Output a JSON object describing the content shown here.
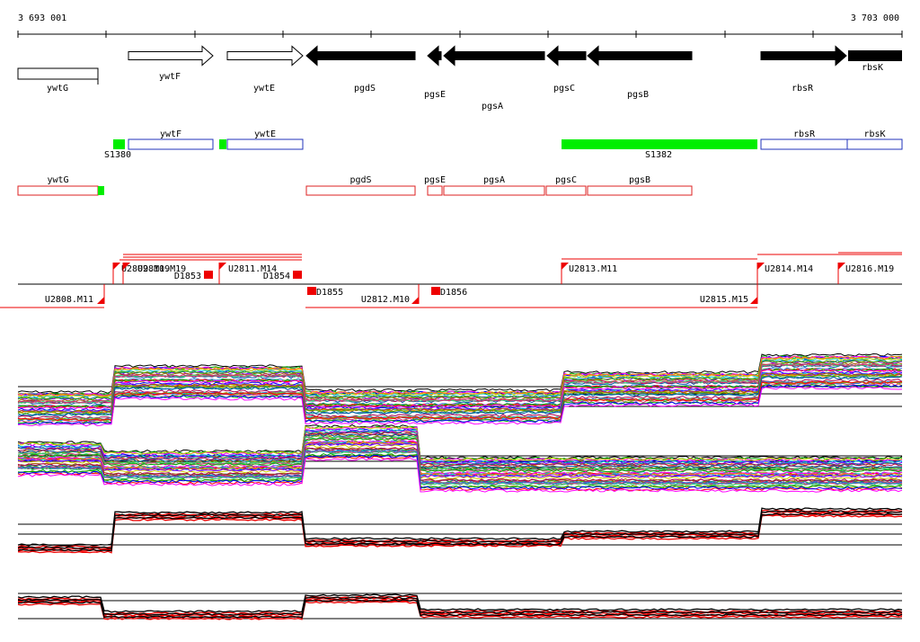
{
  "ruler": {
    "start_label": "3 693 001",
    "end_label": "3 703 000"
  },
  "colors": {
    "gene_fill": "#000000",
    "segment_green": "#00ee00",
    "forward_feature": "#2233bb",
    "reverse_feature": "#dd2222",
    "marker_red": "#ee0000",
    "profile_red": "#ee0000",
    "profile_black": "#000000"
  },
  "annotated_genes": [
    {
      "label": "ywtG",
      "strand": "-",
      "filled": false
    },
    {
      "label": "ywtF",
      "strand": "+",
      "filled": false
    },
    {
      "label": "ywtE",
      "strand": "+",
      "filled": false
    },
    {
      "label": "pgdS",
      "strand": "-",
      "filled": true
    },
    {
      "label": "pgsE",
      "strand": "-",
      "filled": true
    },
    {
      "label": "pgsA",
      "strand": "-",
      "filled": true
    },
    {
      "label": "pgsC",
      "strand": "-",
      "filled": true
    },
    {
      "label": "pgsB",
      "strand": "-",
      "filled": true
    },
    {
      "label": "rbsR",
      "strand": "+",
      "filled": true
    },
    {
      "label": "rbsK",
      "strand": "+",
      "filled": true
    }
  ],
  "forward_track": {
    "features": [
      "ywtF",
      "ywtE",
      "rbsR",
      "rbsK"
    ],
    "segments": [
      "S1380",
      "S1382"
    ]
  },
  "reverse_track": {
    "features": [
      "ywtG",
      "pgdS",
      "pgsE",
      "pgsA",
      "pgsC",
      "pgsB"
    ]
  },
  "forward_markers": [
    "U2809.M19",
    "U2810.M19",
    "U2811.M14",
    "U2813.M11",
    "U2814.M14",
    "U2816.M19"
  ],
  "reverse_markers": [
    "U2808.M11",
    "U2812.M10",
    "U2815.M15"
  ],
  "d_markers": [
    "D1853",
    "D1854",
    "D1855",
    "D1856"
  ],
  "profile_panels": [
    {
      "id": "forward-all-conditions",
      "style": "multicolor"
    },
    {
      "id": "reverse-all-conditions",
      "style": "multicolor"
    },
    {
      "id": "forward-summary",
      "style": "red-black"
    },
    {
      "id": "reverse-summary",
      "style": "red-black"
    }
  ]
}
